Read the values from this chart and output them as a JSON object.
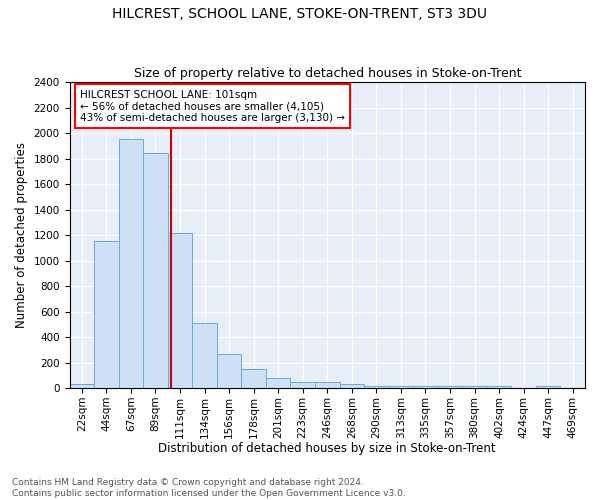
{
  "title": "HILCREST, SCHOOL LANE, STOKE-ON-TRENT, ST3 3DU",
  "subtitle": "Size of property relative to detached houses in Stoke-on-Trent",
  "xlabel": "Distribution of detached houses by size in Stoke-on-Trent",
  "ylabel": "Number of detached properties",
  "bar_labels": [
    "22sqm",
    "44sqm",
    "67sqm",
    "89sqm",
    "111sqm",
    "134sqm",
    "156sqm",
    "178sqm",
    "201sqm",
    "223sqm",
    "246sqm",
    "268sqm",
    "290sqm",
    "313sqm",
    "335sqm",
    "357sqm",
    "380sqm",
    "402sqm",
    "424sqm",
    "447sqm",
    "469sqm"
  ],
  "bar_values": [
    30,
    1150,
    1950,
    1840,
    1220,
    510,
    265,
    150,
    80,
    45,
    45,
    30,
    20,
    20,
    20,
    20,
    20,
    20,
    0,
    20,
    0
  ],
  "bar_color": "#cde0f5",
  "bar_edge_color": "#6aaad4",
  "red_line_x": 3.62,
  "annotation_text": "HILCREST SCHOOL LANE: 101sqm\n← 56% of detached houses are smaller (4,105)\n43% of semi-detached houses are larger (3,130) →",
  "annotation_box_color": "white",
  "annotation_box_edge_color": "red",
  "red_line_color": "#cc0000",
  "ylim": [
    0,
    2400
  ],
  "yticks": [
    0,
    200,
    400,
    600,
    800,
    1000,
    1200,
    1400,
    1600,
    1800,
    2000,
    2200,
    2400
  ],
  "bg_color": "#e8eef8",
  "footer_text": "Contains HM Land Registry data © Crown copyright and database right 2024.\nContains public sector information licensed under the Open Government Licence v3.0.",
  "title_fontsize": 10,
  "subtitle_fontsize": 9,
  "xlabel_fontsize": 8.5,
  "ylabel_fontsize": 8.5,
  "tick_fontsize": 7.5,
  "annotation_fontsize": 7.5,
  "footer_fontsize": 6.5
}
